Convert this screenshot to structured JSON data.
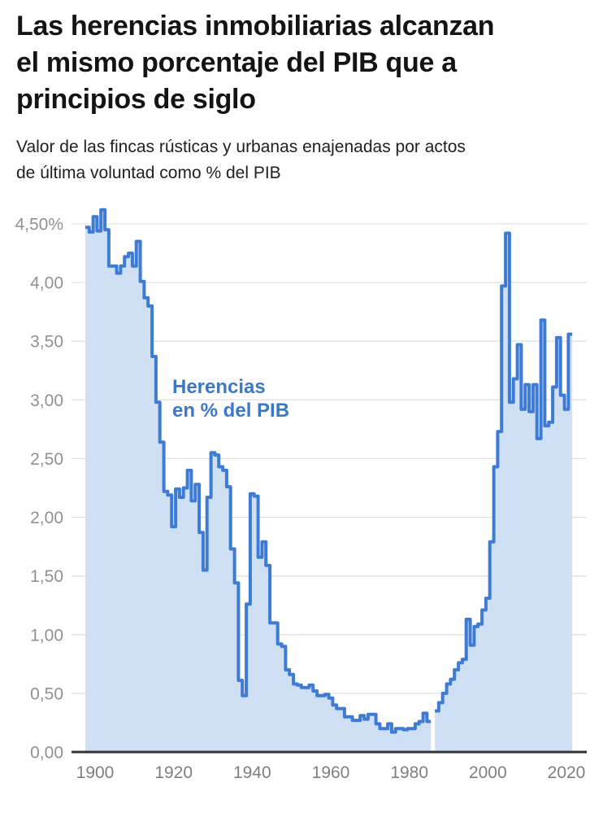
{
  "header": {
    "title_lines": [
      "Las herencias inmobiliarias alcanzan",
      "el mismo porcentaje del PIB que a",
      "principios de siglo"
    ],
    "subtitle_lines": [
      "Valor de las fincas rústicas y urbanas enajenadas por actos",
      "de última voluntad como % del PIB"
    ]
  },
  "chart": {
    "annotation": {
      "line1": "Herencias",
      "line2": "en % del PIB"
    },
    "colors": {
      "line": "#3d7bd4",
      "fill": "#cfe0f4",
      "annotation": "#3c78c8",
      "grid": "#e2e2e2",
      "axis": "#333333",
      "y_tick_label": "#919191",
      "x_tick_label": "#7f7f7f"
    },
    "y_ticks": [
      {
        "label": "4,50%",
        "value": 4.5
      },
      {
        "label": "4,00",
        "value": 4.0
      },
      {
        "label": "3,50",
        "value": 3.5
      },
      {
        "label": "3,00",
        "value": 3.0
      },
      {
        "label": "2,50",
        "value": 2.5
      },
      {
        "label": "2,00",
        "value": 2.0
      },
      {
        "label": "1,50",
        "value": 1.5
      },
      {
        "label": "1,00",
        "value": 1.0
      },
      {
        "label": "0,50",
        "value": 0.5
      },
      {
        "label": "0,00",
        "value": 0.0
      }
    ],
    "x_ticks": [
      1900,
      1920,
      1940,
      1960,
      1980,
      2000,
      2020
    ]
  },
  "chart_data": {
    "type": "area",
    "step": true,
    "name": "Herencias en % del PIB",
    "title": "Valor de las fincas rústicas y urbanas enajenadas por actos de última voluntad como % del PIB",
    "xlabel": "Año",
    "ylabel": "% del PIB",
    "ylim": [
      0,
      4.65
    ],
    "xlim": [
      1898,
      2021
    ],
    "grid": true,
    "missing_data_years": [
      1986
    ],
    "x": [
      1898,
      1899,
      1900,
      1901,
      1902,
      1903,
      1904,
      1905,
      1906,
      1907,
      1908,
      1909,
      1910,
      1911,
      1912,
      1913,
      1914,
      1915,
      1916,
      1917,
      1918,
      1919,
      1920,
      1921,
      1922,
      1923,
      1924,
      1925,
      1926,
      1927,
      1928,
      1929,
      1930,
      1931,
      1932,
      1933,
      1934,
      1935,
      1936,
      1937,
      1938,
      1939,
      1940,
      1941,
      1942,
      1943,
      1944,
      1945,
      1946,
      1947,
      1948,
      1949,
      1950,
      1951,
      1952,
      1953,
      1954,
      1955,
      1956,
      1957,
      1958,
      1959,
      1960,
      1961,
      1962,
      1963,
      1964,
      1965,
      1966,
      1967,
      1968,
      1969,
      1970,
      1971,
      1972,
      1973,
      1974,
      1975,
      1976,
      1977,
      1978,
      1979,
      1980,
      1981,
      1982,
      1983,
      1984,
      1985,
      1986,
      1987,
      1988,
      1989,
      1990,
      1991,
      1992,
      1993,
      1994,
      1995,
      1996,
      1997,
      1998,
      1999,
      2000,
      2001,
      2002,
      2003,
      2004,
      2005,
      2006,
      2007,
      2008,
      2009,
      2010,
      2011,
      2012,
      2013,
      2014,
      2015,
      2016,
      2017,
      2018,
      2019,
      2020,
      2021
    ],
    "values": [
      4.47,
      4.43,
      4.56,
      4.44,
      4.62,
      4.45,
      4.14,
      4.14,
      4.08,
      4.14,
      4.22,
      4.25,
      4.14,
      4.35,
      4.01,
      3.87,
      3.8,
      3.37,
      2.98,
      2.64,
      2.22,
      2.19,
      1.92,
      2.24,
      2.17,
      2.25,
      2.4,
      2.14,
      2.28,
      1.87,
      1.55,
      2.17,
      2.55,
      2.53,
      2.43,
      2.4,
      2.26,
      1.73,
      1.44,
      0.61,
      0.48,
      1.26,
      2.2,
      2.18,
      1.66,
      1.79,
      1.59,
      1.1,
      1.1,
      0.92,
      0.9,
      0.7,
      0.66,
      0.58,
      0.57,
      0.55,
      0.55,
      0.57,
      0.52,
      0.48,
      0.48,
      0.49,
      0.46,
      0.4,
      0.37,
      0.37,
      0.3,
      0.3,
      0.27,
      0.27,
      0.31,
      0.28,
      0.32,
      0.32,
      0.24,
      0.2,
      0.2,
      0.24,
      0.17,
      0.2,
      0.2,
      0.19,
      0.2,
      0.2,
      0.24,
      0.26,
      0.33,
      0.26,
      null,
      0.35,
      0.42,
      0.5,
      0.58,
      0.62,
      0.7,
      0.76,
      0.79,
      1.13,
      0.91,
      1.07,
      1.09,
      1.21,
      1.31,
      1.79,
      2.43,
      2.73,
      3.97,
      4.42,
      2.98,
      3.18,
      3.47,
      2.92,
      3.13,
      2.9,
      3.13,
      2.67,
      3.68,
      2.78,
      2.81,
      3.11,
      3.53,
      3.04,
      2.92,
      3.56
    ]
  }
}
